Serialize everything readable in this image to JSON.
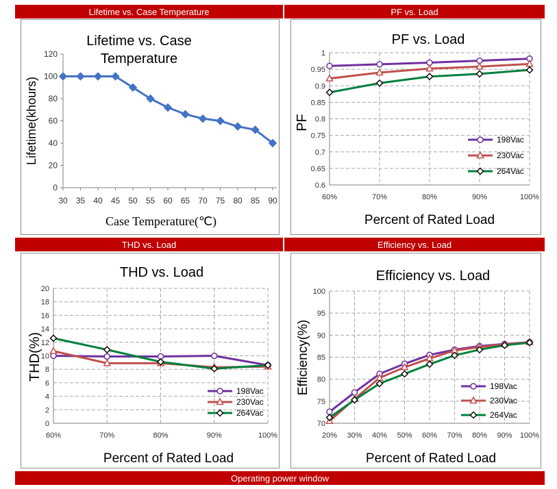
{
  "headers": {
    "lifetime": "Lifetime vs. Case Temperature",
    "pf": "PF vs. Load",
    "thd": "THD vs. Load",
    "efficiency": "Efficiency vs. Load",
    "footer": "Operating power window"
  },
  "colors": {
    "header_bg": "#c00000",
    "blue_series": "#4472c4",
    "v198": "#7030a0",
    "v230": "#c0504d",
    "v264": "#00803c"
  },
  "chart_data": [
    {
      "id": "lifetime",
      "type": "line",
      "title": "Lifetime vs. Case Temperature",
      "xlabel": "Case Temperature(℃)",
      "ylabel": "Lifetime(khours)",
      "x": [
        30,
        35,
        40,
        45,
        50,
        55,
        60,
        65,
        70,
        75,
        80,
        85,
        90
      ],
      "x_ticks": [
        "30",
        "35",
        "40",
        "45",
        "50",
        "55",
        "60",
        "65",
        "70",
        "75",
        "80",
        "85",
        "90"
      ],
      "y_ticks": [
        "0",
        "20",
        "40",
        "60",
        "80",
        "100",
        "120"
      ],
      "ylim": [
        0,
        120
      ],
      "grid": false,
      "series": [
        {
          "values": [
            100,
            100,
            100,
            100,
            90,
            80,
            72,
            66,
            62,
            60,
            55,
            52,
            40
          ]
        }
      ]
    },
    {
      "id": "pf",
      "type": "line",
      "title": "PF vs. Load",
      "xlabel": "Percent of Rated Load",
      "ylabel": "PF",
      "categories": [
        "60%",
        "70%",
        "80%",
        "90%",
        "100%"
      ],
      "y_ticks": [
        "0.6",
        "0.65",
        "0.7",
        "0.75",
        "0.8",
        "0.85",
        "0.9",
        "0.95",
        "1"
      ],
      "ylim": [
        0.6,
        1
      ],
      "grid": true,
      "legend": "right",
      "series": [
        {
          "name": "198Vac",
          "values": [
            0.96,
            0.965,
            0.97,
            0.976,
            0.982
          ]
        },
        {
          "name": "230Vac",
          "values": [
            0.922,
            0.94,
            0.952,
            0.958,
            0.966
          ]
        },
        {
          "name": "264Vac",
          "values": [
            0.88,
            0.908,
            0.928,
            0.936,
            0.948
          ]
        }
      ]
    },
    {
      "id": "thd",
      "type": "line",
      "title": "THD vs. Load",
      "xlabel": "Percent of Rated Load",
      "ylabel": "THD(%)",
      "categories": [
        "60%",
        "70%",
        "80%",
        "90%",
        "100%"
      ],
      "y_ticks": [
        "0",
        "2",
        "4",
        "6",
        "8",
        "10",
        "12",
        "14",
        "16",
        "18",
        "20"
      ],
      "ylim": [
        0,
        20
      ],
      "grid": true,
      "legend": "bottom-right",
      "series": [
        {
          "name": "198Vac",
          "values": [
            10,
            9.9,
            9.9,
            10,
            8.6
          ]
        },
        {
          "name": "230Vac",
          "values": [
            10.7,
            8.9,
            8.9,
            8.3,
            8.4
          ]
        },
        {
          "name": "264Vac",
          "values": [
            12.6,
            10.9,
            9.1,
            8.1,
            8.6
          ]
        }
      ]
    },
    {
      "id": "efficiency",
      "type": "line",
      "title": "Efficiency vs. Load",
      "xlabel": "Percent of Rated Load",
      "ylabel": "Efficiency(%)",
      "categories": [
        "20%",
        "30%",
        "40%",
        "50%",
        "60%",
        "70%",
        "80%",
        "90%",
        "100%"
      ],
      "y_ticks": [
        "70",
        "75",
        "80",
        "85",
        "90",
        "95",
        "100"
      ],
      "ylim": [
        70,
        100
      ],
      "grid": true,
      "legend": "bottom-right",
      "series": [
        {
          "name": "198Vac",
          "values": [
            72.6,
            77,
            81.2,
            83.5,
            85.5,
            86.7,
            87.5,
            88,
            88.4
          ]
        },
        {
          "name": "230Vac",
          "values": [
            70.5,
            75.5,
            80.3,
            82.7,
            84.7,
            86.5,
            87.3,
            87.9,
            88.4
          ]
        },
        {
          "name": "264Vac",
          "values": [
            71.3,
            75.3,
            79,
            81.2,
            83.4,
            85.4,
            86.7,
            87.7,
            88.3
          ]
        }
      ]
    }
  ]
}
